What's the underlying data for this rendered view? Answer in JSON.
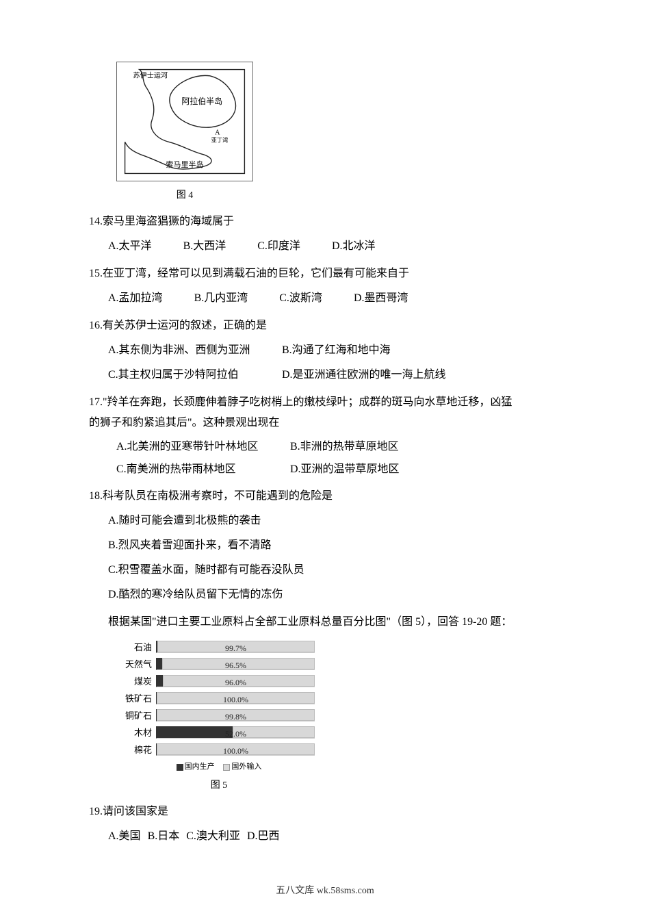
{
  "figure4": {
    "caption": "图 4",
    "labels": {
      "suez": "苏伊士运河",
      "arabia": "阿拉伯半岛",
      "a": "A",
      "somalia": "索马里半岛",
      "aden": "亚丁湾"
    },
    "stroke": "#222222",
    "fill": "#ffffff"
  },
  "q14": {
    "stem": "14.索马里海盗猖獗的海域属于",
    "opts": {
      "A": "A.太平洋",
      "B": "B.大西洋",
      "C": "C.印度洋",
      "D": "D.北冰洋"
    }
  },
  "q15": {
    "stem": "15.在亚丁湾，经常可以见到满载石油的巨轮，它们最有可能来自于",
    "opts": {
      "A": "A.孟加拉湾",
      "B": "B.几内亚湾",
      "C": "C.波斯湾",
      "D": "D.墨西哥湾"
    }
  },
  "q16": {
    "stem": "16.有关苏伊士运河的叙述，正确的是",
    "opts": {
      "A": "A.其东侧为非洲、西侧为亚洲",
      "B": "B.沟通了红海和地中海",
      "C": "C.其主权归属于沙特阿拉伯",
      "D": "D.是亚洲通往欧洲的唯一海上航线"
    }
  },
  "q17": {
    "stem1": "17.\"羚羊在奔跑，长颈鹿伸着脖子吃树梢上的嫩枝绿叶；成群的斑马向水草地迁移，凶猛",
    "stem2": "的狮子和豹紧追其后\"。这种景观出现在",
    "opts": {
      "A": "A.北美洲的亚寒带针叶林地区",
      "B": "B.非洲的热带草原地区",
      "C": "C.南美洲的热带雨林地区",
      "D": "D.亚洲的温带草原地区"
    }
  },
  "q18": {
    "stem": "18.科考队员在南极洲考察时，不可能遇到的危险是",
    "opts": {
      "A": "A.随时可能会遭到北极熊的袭击",
      "B": "B.烈风夹着雪迎面扑来，看不清路",
      "C": "C.积雪覆盖水面，随时都有可能吞没队员",
      "D": "D.酷烈的寒冷给队员留下无情的冻伤"
    }
  },
  "chart_intro": "根据某国\"进口主要工业原料占全部工业原料总量百分比图\"（图 5），回答 19-20 题：",
  "chart": {
    "caption": "图 5",
    "legend_domestic": "国内生产",
    "legend_import": "国外输入",
    "bar_domestic_color": "#333333",
    "bar_import_color": "#d8d8d8",
    "rows": [
      {
        "label": "石油",
        "value": "99.7%",
        "import_pct": 99.7
      },
      {
        "label": "天然气",
        "value": "96.5%",
        "import_pct": 96.5
      },
      {
        "label": "煤炭",
        "value": "96.0%",
        "import_pct": 96.0
      },
      {
        "label": "铁矿石",
        "value": "100.0%",
        "import_pct": 100.0
      },
      {
        "label": "铜矿石",
        "value": "99.8%",
        "import_pct": 99.8
      },
      {
        "label": "木材",
        "value": "52.0%",
        "import_pct": 52.0
      },
      {
        "label": "棉花",
        "value": "100.0%",
        "import_pct": 100.0
      }
    ]
  },
  "q19": {
    "stem": "19.请问该国家是",
    "opts": {
      "A": "A.美国",
      "B": "B.日本",
      "C": "C.澳大利亚",
      "D": "D.巴西"
    }
  },
  "footer": "五八文库 wk.58sms.com"
}
